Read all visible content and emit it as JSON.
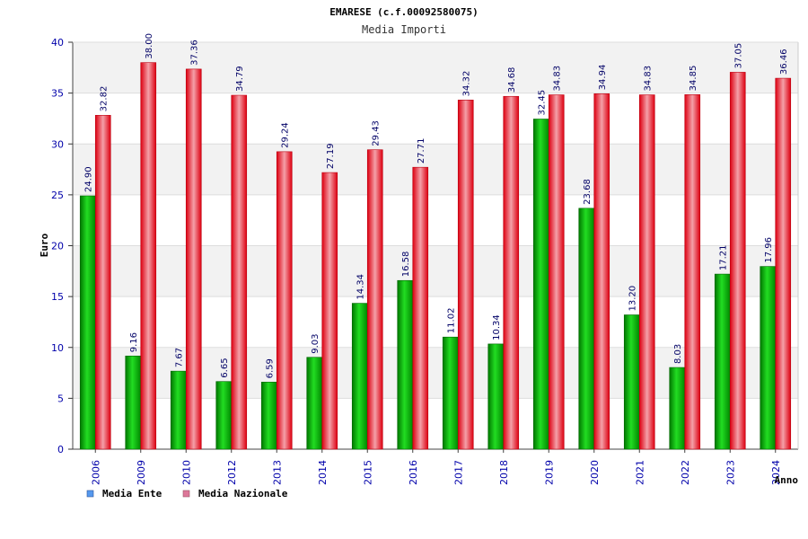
{
  "chart_data": {
    "type": "bar",
    "title": "EMARESE (c.f.00092580075)",
    "subtitle": "Media Importi",
    "ylabel": "Euro",
    "xlabel": "Anno",
    "ylim": [
      0,
      40
    ],
    "yticks": [
      "0",
      "5",
      "10",
      "15",
      "20",
      "25",
      "30",
      "35",
      "40"
    ],
    "grid": true,
    "legend_position": "bottom-left",
    "categories": [
      "2006",
      "2009",
      "2010",
      "2012",
      "2013",
      "2014",
      "2015",
      "2016",
      "2017",
      "2018",
      "2019",
      "2020",
      "2021",
      "2022",
      "2023",
      "2024"
    ],
    "series": [
      {
        "name": "Media Ente",
        "color": "#00bb00",
        "legend_color": "#5599ee",
        "values": [
          24.9,
          9.16,
          7.67,
          6.65,
          6.59,
          9.03,
          14.34,
          16.58,
          11.02,
          10.34,
          32.45,
          23.68,
          13.2,
          8.03,
          17.21,
          17.96
        ],
        "labels": [
          "24.90",
          "9.16",
          "7.67",
          "6.65",
          "6.59",
          "9.03",
          "14.34",
          "16.58",
          "11.02",
          "10.34",
          "32.45",
          "23.68",
          "13.20",
          "8.03",
          "17.21",
          "17.96"
        ]
      },
      {
        "name": "Media Nazionale",
        "color": "#ee1122",
        "legend_color": "#dd7799",
        "values": [
          32.82,
          38.0,
          37.36,
          34.79,
          29.24,
          27.19,
          29.43,
          27.71,
          34.32,
          34.68,
          34.83,
          34.94,
          34.83,
          34.85,
          37.05,
          36.46
        ],
        "labels": [
          "32.82",
          "38.00",
          "37.36",
          "34.79",
          "29.24",
          "27.19",
          "29.43",
          "27.71",
          "34.32",
          "34.68",
          "34.83",
          "34.94",
          "34.83",
          "34.85",
          "37.05",
          "36.46"
        ]
      }
    ]
  }
}
